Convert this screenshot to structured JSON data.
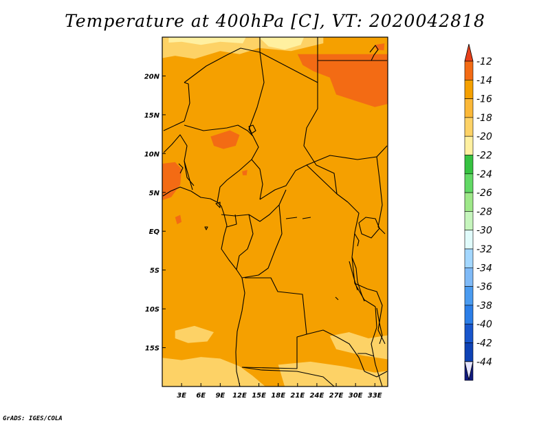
{
  "title": "Temperature at 400hPa [C], VT: 2020042818",
  "credit": "GrADS: IGES/COLA",
  "map": {
    "lon_range": [
      0,
      35
    ],
    "lat_range": [
      -20,
      25
    ],
    "x_ticks": [
      {
        "lon": 3,
        "label": "3E"
      },
      {
        "lon": 6,
        "label": "6E"
      },
      {
        "lon": 9,
        "label": "9E"
      },
      {
        "lon": 12,
        "label": "12E"
      },
      {
        "lon": 15,
        "label": "15E"
      },
      {
        "lon": 18,
        "label": "18E"
      },
      {
        "lon": 21,
        "label": "21E"
      },
      {
        "lon": 24,
        "label": "24E"
      },
      {
        "lon": 27,
        "label": "27E"
      },
      {
        "lon": 30,
        "label": "30E"
      },
      {
        "lon": 33,
        "label": "33E"
      }
    ],
    "y_ticks": [
      {
        "lat": 20,
        "label": "20N"
      },
      {
        "lat": 15,
        "label": "15N"
      },
      {
        "lat": 10,
        "label": "10N"
      },
      {
        "lat": 5,
        "label": "5N"
      },
      {
        "lat": 0,
        "label": "EQ"
      },
      {
        "lat": -5,
        "label": "5S"
      },
      {
        "lat": -10,
        "label": "10S"
      },
      {
        "lat": -15,
        "label": "15S"
      }
    ],
    "base_color": "#f5a000",
    "fields": [
      {
        "name": "cool-band-north",
        "color": "#fdd266",
        "poly": [
          [
            0,
            25
          ],
          [
            25,
            25
          ],
          [
            25,
            24.2
          ],
          [
            20,
            23.2
          ],
          [
            15,
            23.6
          ],
          [
            12,
            22.8
          ],
          [
            9,
            23.2
          ],
          [
            5,
            22.2
          ],
          [
            2,
            22.6
          ],
          [
            0,
            22.3
          ]
        ]
      },
      {
        "name": "cooler-band-north",
        "color": "#fff0a0",
        "poly": [
          [
            1,
            25
          ],
          [
            13,
            25
          ],
          [
            12.5,
            24.2
          ],
          [
            9,
            24.4
          ],
          [
            6,
            24.0
          ],
          [
            3,
            24.4
          ],
          [
            1,
            24.3
          ]
        ]
      },
      {
        "name": "cooler-patch-north",
        "color": "#fff0a0",
        "poly": [
          [
            15,
            25
          ],
          [
            22,
            25
          ],
          [
            21.5,
            24
          ],
          [
            19,
            23.4
          ],
          [
            16.5,
            23.8
          ]
        ]
      },
      {
        "name": "cool-band-south",
        "color": "#fdd266",
        "poly": [
          [
            0,
            -20
          ],
          [
            16,
            -20
          ],
          [
            14,
            -18.6
          ],
          [
            12,
            -17.4
          ],
          [
            9,
            -16.4
          ],
          [
            6,
            -16.2
          ],
          [
            3,
            -16.6
          ],
          [
            0,
            -16.3
          ]
        ]
      },
      {
        "name": "cool-patch-sw",
        "color": "#fdd266",
        "poly": [
          [
            2,
            -12.8
          ],
          [
            5,
            -12.2
          ],
          [
            8,
            -13
          ],
          [
            7,
            -14.2
          ],
          [
            4,
            -14.4
          ],
          [
            2,
            -13.8
          ]
        ]
      },
      {
        "name": "cool-patch-se",
        "color": "#fdd266",
        "poly": [
          [
            26,
            -13.5
          ],
          [
            29,
            -13
          ],
          [
            32,
            -13.8
          ],
          [
            35,
            -13.4
          ],
          [
            35,
            -16.5
          ],
          [
            31,
            -16
          ],
          [
            27,
            -15.2
          ]
        ]
      },
      {
        "name": "cool-patch-s",
        "color": "#fdd266",
        "poly": [
          [
            18,
            -17.2
          ],
          [
            23,
            -16.8
          ],
          [
            28,
            -17.4
          ],
          [
            33,
            -18.2
          ],
          [
            35,
            -18
          ],
          [
            35,
            -20
          ],
          [
            19,
            -20
          ]
        ]
      },
      {
        "name": "warm-patch-ne",
        "color": "#f36b14",
        "poly": [
          [
            21,
            22.8
          ],
          [
            35,
            22.8
          ],
          [
            35,
            16.4
          ],
          [
            33,
            16.0
          ],
          [
            30,
            16.8
          ],
          [
            27,
            17.6
          ],
          [
            26,
            19.8
          ],
          [
            23.5,
            20.6
          ],
          [
            21.8,
            21.4
          ]
        ]
      },
      {
        "name": "warm-patch-nigeria",
        "color": "#f36b14",
        "poly": [
          [
            7.5,
            12.2
          ],
          [
            10.5,
            13
          ],
          [
            12,
            12.4
          ],
          [
            11.4,
            11
          ],
          [
            9.5,
            10.6
          ],
          [
            8,
            11
          ]
        ]
      },
      {
        "name": "warm-patch-coast",
        "color": "#f36b14",
        "poly": [
          [
            0,
            8.7
          ],
          [
            2,
            8.9
          ],
          [
            3,
            8
          ],
          [
            2.8,
            6
          ],
          [
            1.4,
            4.4
          ],
          [
            0,
            4
          ]
        ]
      },
      {
        "name": "warm-speck-1",
        "color": "#f36b14",
        "poly": [
          [
            2,
            1.8
          ],
          [
            2.8,
            2.1
          ],
          [
            3.0,
            1.2
          ],
          [
            2.3,
            0.9
          ]
        ]
      },
      {
        "name": "warm-speck-2",
        "color": "#f36b14",
        "poly": [
          [
            12.4,
            7.7
          ],
          [
            13.2,
            7.9
          ],
          [
            13.1,
            7.2
          ],
          [
            12.5,
            7.2
          ]
        ]
      },
      {
        "name": "warm-speck-3",
        "color": "#f36b14",
        "poly": [
          [
            33,
            24.0
          ],
          [
            34.5,
            24.2
          ],
          [
            34.4,
            23.3
          ],
          [
            33.2,
            23.4
          ]
        ]
      }
    ]
  },
  "legend": {
    "items": [
      {
        "label": "-12",
        "color": "#e8401a"
      },
      {
        "label": "-14",
        "color": "#f36b14"
      },
      {
        "label": "-16",
        "color": "#f5a000"
      },
      {
        "label": "-18",
        "color": "#fbb838"
      },
      {
        "label": "-20",
        "color": "#fdd266"
      },
      {
        "label": "-22",
        "color": "#fff0a0"
      },
      {
        "label": "-24",
        "color": "#36c241"
      },
      {
        "label": "-26",
        "color": "#62d965"
      },
      {
        "label": "-28",
        "color": "#9ee889"
      },
      {
        "label": "-30",
        "color": "#c6f5bd"
      },
      {
        "label": "-32",
        "color": "#e0fbfb"
      },
      {
        "label": "-34",
        "color": "#a3d7ff"
      },
      {
        "label": "-36",
        "color": "#7fbaf7"
      },
      {
        "label": "-38",
        "color": "#4a9bf0"
      },
      {
        "label": "-40",
        "color": "#2b7ee8"
      },
      {
        "label": "-42",
        "color": "#1856cc"
      },
      {
        "label": "-44",
        "color": "#0e42b5"
      }
    ],
    "top_arrow_color": "#e8401a",
    "bottom_arrow_color": "#e4e4ff",
    "below_lowest_color": "#101a7e"
  }
}
